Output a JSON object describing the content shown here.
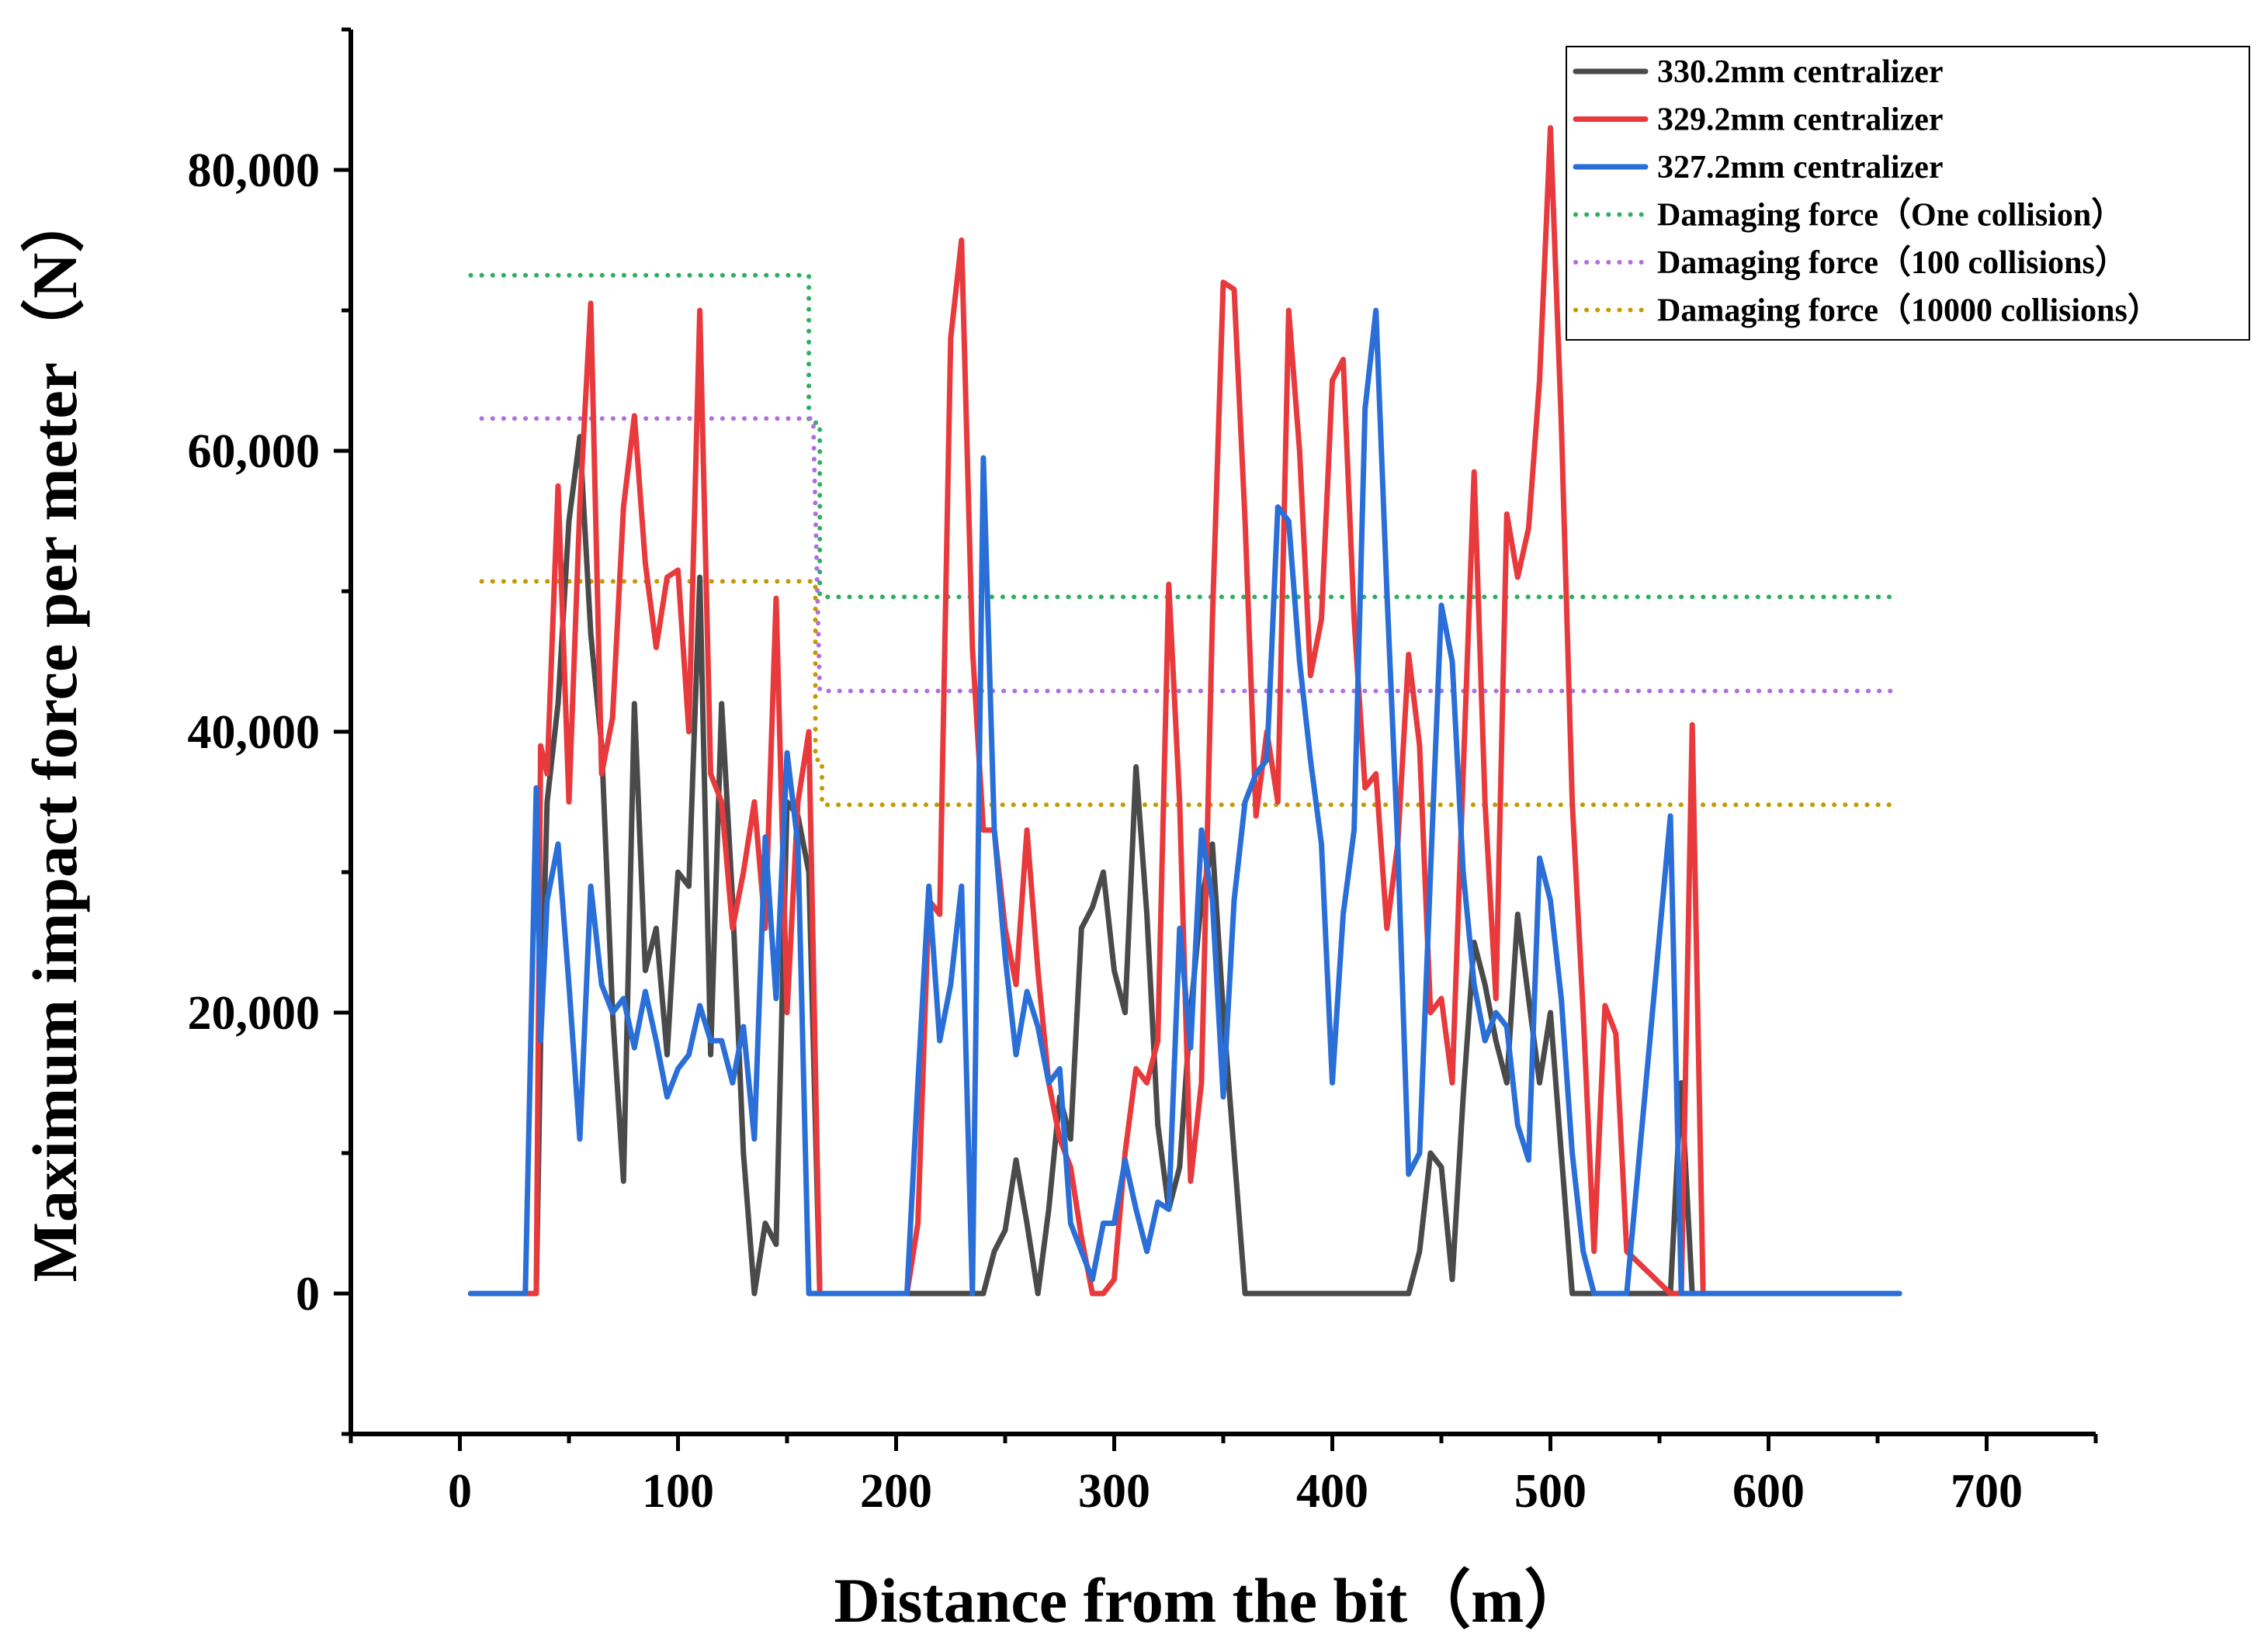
{
  "chart_data": {
    "type": "line",
    "title": "",
    "xlabel": "Distance from the bit（m）",
    "ylabel": "Maximum impact force per meter（N）",
    "xlim": [
      -50,
      750
    ],
    "ylim": [
      -10000,
      90000
    ],
    "xticks": [
      0,
      100,
      200,
      300,
      400,
      500,
      600,
      700
    ],
    "xtick_labels": [
      "0",
      "100",
      "200",
      "300",
      "400",
      "500",
      "600",
      "700"
    ],
    "yticks": [
      0,
      20000,
      40000,
      60000,
      80000
    ],
    "ytick_labels": [
      "0",
      "20,000",
      "40,000",
      "60,000",
      "80,000"
    ],
    "legend_position": "top-right",
    "series": [
      {
        "name": "330.2mm centralizer",
        "color": "#4a4a4a",
        "style": "solid",
        "x": [
          5,
          30,
          35,
          37,
          40,
          45,
          50,
          55,
          60,
          65,
          70,
          75,
          80,
          85,
          90,
          95,
          100,
          105,
          110,
          115,
          120,
          125,
          130,
          135,
          140,
          145,
          150,
          155,
          160,
          165,
          170,
          205,
          210,
          240,
          245,
          250,
          255,
          260,
          265,
          270,
          275,
          280,
          285,
          290,
          295,
          300,
          305,
          310,
          315,
          320,
          325,
          330,
          335,
          340,
          345,
          350,
          355,
          360,
          430,
          435,
          440,
          445,
          450,
          455,
          460,
          465,
          470,
          475,
          480,
          485,
          490,
          495,
          500,
          505,
          510,
          520,
          555,
          560,
          565,
          570,
          660
        ],
        "values": [
          0,
          0,
          0,
          18000,
          35000,
          42000,
          55000,
          61000,
          47000,
          39000,
          20000,
          8000,
          42000,
          23000,
          26000,
          17000,
          30000,
          29000,
          51000,
          17000,
          42000,
          28000,
          10000,
          0,
          5000,
          3500,
          35000,
          34000,
          30000,
          0,
          0,
          0,
          0,
          0,
          3000,
          4500,
          9500,
          5000,
          0,
          6000,
          14000,
          11000,
          26000,
          27500,
          30000,
          23000,
          20000,
          37500,
          27000,
          12000,
          6000,
          9000,
          20000,
          28000,
          32000,
          20000,
          10000,
          0,
          0,
          0,
          3000,
          10000,
          9000,
          1000,
          14000,
          25000,
          22000,
          18000,
          15000,
          27000,
          21000,
          15000,
          20000,
          10000,
          0,
          0,
          0,
          15000,
          0,
          0,
          0
        ]
      },
      {
        "name": "329.2mm centralizer",
        "color": "#e8393c",
        "style": "solid",
        "x": [
          5,
          30,
          35,
          37,
          40,
          45,
          50,
          55,
          60,
          65,
          70,
          75,
          80,
          85,
          90,
          95,
          100,
          105,
          110,
          115,
          120,
          125,
          130,
          135,
          140,
          145,
          150,
          155,
          160,
          165,
          170,
          205,
          210,
          215,
          220,
          225,
          230,
          235,
          240,
          245,
          250,
          255,
          260,
          265,
          270,
          275,
          280,
          285,
          290,
          295,
          300,
          305,
          310,
          315,
          320,
          325,
          330,
          335,
          340,
          345,
          350,
          355,
          360,
          365,
          370,
          375,
          380,
          385,
          390,
          395,
          400,
          405,
          410,
          415,
          420,
          425,
          430,
          435,
          440,
          445,
          450,
          455,
          460,
          465,
          470,
          475,
          480,
          485,
          490,
          495,
          500,
          505,
          510,
          515,
          520,
          525,
          530,
          535,
          555,
          560,
          565,
          570,
          660
        ],
        "values": [
          0,
          0,
          0,
          39000,
          37000,
          57500,
          35000,
          56000,
          70500,
          37000,
          41000,
          56000,
          62500,
          52000,
          46000,
          51000,
          51500,
          40000,
          70000,
          37000,
          35000,
          26000,
          30000,
          35000,
          26000,
          49500,
          20000,
          35000,
          40000,
          0,
          0,
          0,
          5000,
          28000,
          27000,
          68000,
          75000,
          46000,
          33000,
          33000,
          26000,
          22000,
          33000,
          23000,
          15000,
          11000,
          9000,
          4000,
          0,
          0,
          1000,
          10000,
          16000,
          15000,
          18000,
          50500,
          35000,
          8000,
          15000,
          48000,
          72000,
          71500,
          55000,
          34000,
          40000,
          35000,
          70000,
          60000,
          44000,
          48000,
          65000,
          66500,
          48000,
          36000,
          37000,
          26000,
          32000,
          45500,
          39000,
          20000,
          21000,
          15000,
          37000,
          58500,
          35000,
          21000,
          55500,
          51000,
          54500,
          65000,
          83000,
          62000,
          35000,
          20000,
          3000,
          20500,
          18500,
          3000,
          0,
          0,
          40500,
          0,
          0
        ]
      },
      {
        "name": "327.2mm centralizer",
        "color": "#2a6ed8",
        "style": "solid",
        "x": [
          5,
          30,
          35,
          37,
          40,
          45,
          50,
          55,
          60,
          65,
          70,
          75,
          80,
          85,
          90,
          95,
          100,
          105,
          110,
          115,
          120,
          125,
          130,
          135,
          140,
          145,
          150,
          155,
          160,
          165,
          170,
          205,
          210,
          215,
          220,
          225,
          230,
          235,
          240,
          245,
          250,
          255,
          260,
          265,
          270,
          275,
          280,
          285,
          290,
          295,
          300,
          305,
          310,
          315,
          320,
          325,
          330,
          335,
          340,
          345,
          350,
          355,
          360,
          365,
          370,
          375,
          380,
          385,
          390,
          395,
          400,
          405,
          410,
          415,
          420,
          425,
          430,
          435,
          440,
          445,
          450,
          455,
          460,
          465,
          470,
          475,
          480,
          485,
          490,
          495,
          500,
          505,
          510,
          515,
          520,
          525,
          530,
          535,
          555,
          560,
          565,
          570,
          660
        ],
        "values": [
          0,
          0,
          36000,
          18000,
          28000,
          32000,
          22000,
          11000,
          29000,
          22000,
          20000,
          21000,
          17500,
          21500,
          18000,
          14000,
          16000,
          17000,
          20500,
          18000,
          18000,
          15000,
          19000,
          11000,
          32500,
          21000,
          38500,
          32000,
          0,
          0,
          0,
          0,
          15000,
          29000,
          18000,
          22000,
          29000,
          0,
          59500,
          33000,
          24000,
          17000,
          21500,
          19000,
          15000,
          16000,
          5000,
          3000,
          1000,
          5000,
          5000,
          9500,
          6000,
          3000,
          6500,
          6000,
          26000,
          17500,
          33000,
          28000,
          14000,
          28000,
          35000,
          37000,
          38000,
          56000,
          55000,
          45000,
          38000,
          32000,
          15000,
          27000,
          33000,
          63000,
          70000,
          50000,
          32000,
          8500,
          10000,
          30000,
          49000,
          45000,
          30000,
          22000,
          18000,
          20000,
          19000,
          12000,
          9500,
          31000,
          28000,
          21000,
          10000,
          3000,
          0,
          0,
          0,
          0,
          34000,
          0,
          0,
          0,
          0
        ]
      },
      {
        "name": "Damaging force（One collision）",
        "color": "#2fae5f",
        "style": "dotted",
        "x": [
          5,
          160,
          160,
          165,
          165,
          660
        ],
        "values": [
          72500,
          72500,
          62000,
          62000,
          49600,
          49600
        ]
      },
      {
        "name": "Damaging force（100 collisions）",
        "color": "#b06ee0",
        "style": "dotted",
        "x": [
          10,
          162,
          165,
          660
        ],
        "values": [
          62300,
          62300,
          42900,
          42900
        ]
      },
      {
        "name": "Damaging force（10000 collisions）",
        "color": "#c49a00",
        "style": "dotted",
        "x": [
          10,
          163,
          163,
          166,
          166,
          660
        ],
        "values": [
          50700,
          50700,
          38000,
          38000,
          34800,
          34800
        ]
      }
    ]
  }
}
